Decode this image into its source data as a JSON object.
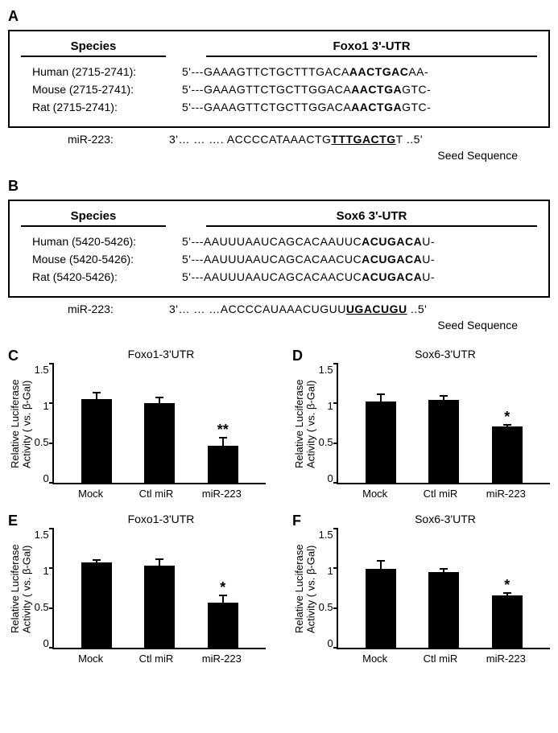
{
  "panelA": {
    "label": "A",
    "speciesHeader": "Species",
    "utrHeader": "Foxo1 3'-UTR",
    "rows": [
      {
        "name": "Human (2715-2741):",
        "pre": "5'---GAAAGTTCTGCTTTGACA",
        "bold": "AACTGAC",
        "post": "AA-"
      },
      {
        "name": "Mouse (2715-2741):",
        "pre": "5'---GAAAGTTCTGCTTGGACA",
        "bold": "AACTGA",
        "post": "GTC-"
      },
      {
        "name": "Rat (2715-2741):",
        "pre": "5'---GAAAGTTCTGCTTGGACA",
        "bold": "AACTGA",
        "post": "GTC-"
      }
    ],
    "mirLabel": "miR-223:",
    "mirPre": "3'… … …. ACCCCATAAACTG",
    "mirBold": "TTTGACTG",
    "mirPost": "T ..5'",
    "seedLabel": "Seed Sequence"
  },
  "panelB": {
    "label": "B",
    "speciesHeader": "Species",
    "utrHeader": "Sox6 3'-UTR",
    "rows": [
      {
        "name": "Human (5420-5426):",
        "pre": "5'---AAUUUAAUCAGCACAAUUC",
        "bold": "ACUGACA",
        "post": "U-"
      },
      {
        "name": "Mouse (5420-5426):",
        "pre": "5'---AAUUUAAUCAGCACAACUC",
        "bold": "ACUGACA",
        "post": "U-"
      },
      {
        "name": "Rat (5420-5426):",
        "pre": "5'---AAUUUAAUCAGCACAACUC",
        "bold": "ACUGACA",
        "post": "U-"
      }
    ],
    "mirLabel": "miR-223:",
    "mirPre": "3'… … …ACCCCAUAAACUGUU",
    "mirBold": "UGACUGU",
    "mirPost": " ..5'",
    "seedLabel": "Seed Sequence"
  },
  "charts": {
    "yLabelLine1": "Relative Luciferase",
    "yLabelLine2": "Activity ( vs. β-Gal)",
    "yTicks": [
      "1.5",
      "1",
      "0.5",
      "0"
    ],
    "xLabels": [
      "Mock",
      "Ctl miR",
      "miR-223"
    ],
    "C": {
      "label": "C",
      "title": "Foxo1-3'UTR",
      "bars": [
        {
          "value": 1.05,
          "err": 0.1,
          "sig": ""
        },
        {
          "value": 1.0,
          "err": 0.08,
          "sig": ""
        },
        {
          "value": 0.47,
          "err": 0.11,
          "sig": "**"
        }
      ]
    },
    "D": {
      "label": "D",
      "title": "Sox6-3'UTR",
      "bars": [
        {
          "value": 1.02,
          "err": 0.11,
          "sig": ""
        },
        {
          "value": 1.04,
          "err": 0.06,
          "sig": ""
        },
        {
          "value": 0.71,
          "err": 0.03,
          "sig": "*"
        }
      ]
    },
    "E": {
      "label": "E",
      "title": "Foxo1-3'UTR",
      "bars": [
        {
          "value": 1.07,
          "err": 0.05,
          "sig": ""
        },
        {
          "value": 1.03,
          "err": 0.1,
          "sig": ""
        },
        {
          "value": 0.57,
          "err": 0.1,
          "sig": "*"
        }
      ]
    },
    "F": {
      "label": "F",
      "title": "Sox6-3'UTR",
      "bars": [
        {
          "value": 0.99,
          "err": 0.11,
          "sig": ""
        },
        {
          "value": 0.95,
          "err": 0.05,
          "sig": ""
        },
        {
          "value": 0.66,
          "err": 0.04,
          "sig": "*"
        }
      ]
    }
  },
  "style": {
    "barColor": "#000000",
    "background": "#ffffff",
    "axisColor": "#000000",
    "maxY": 1.5,
    "plotHeightPx": 148
  }
}
